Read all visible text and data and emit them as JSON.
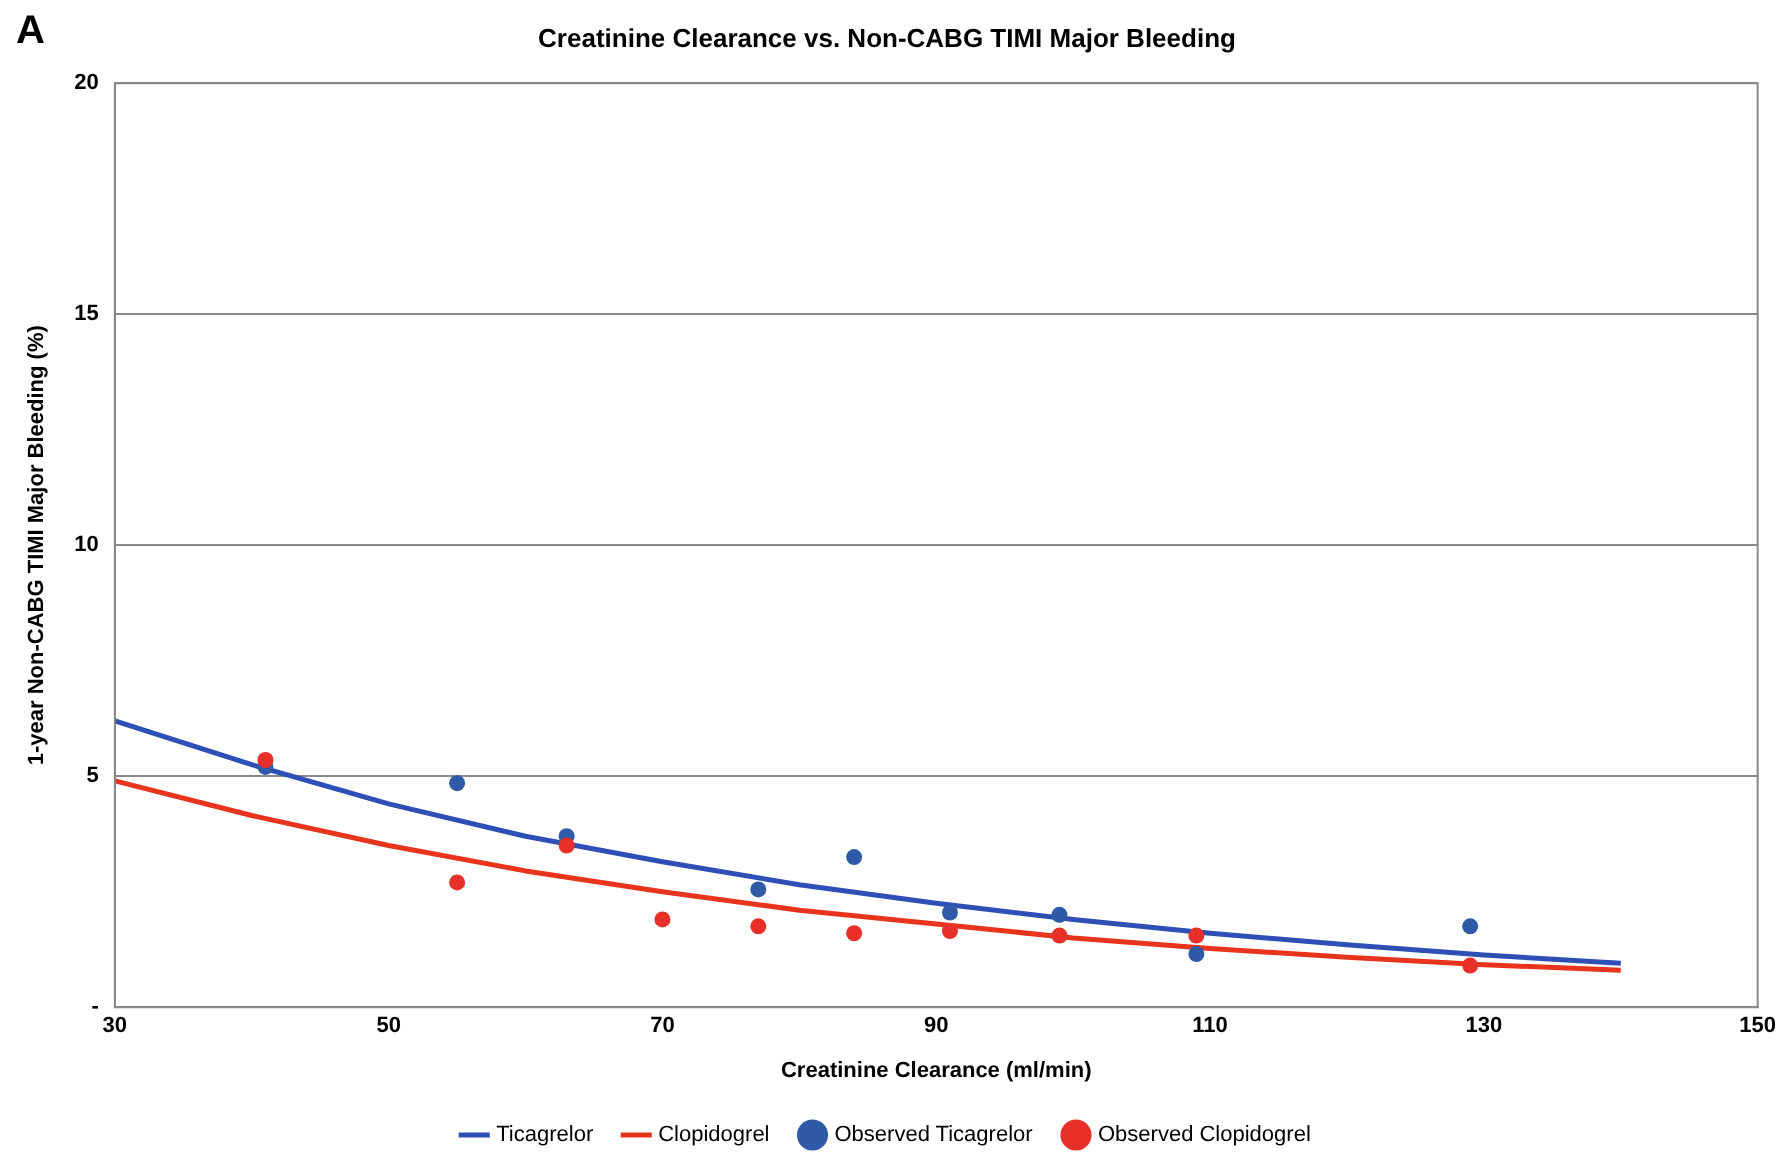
{
  "chart_data": {
    "type": "scatter",
    "title": "Creatinine Clearance vs. Non-CABG TIMI Major Bleeding",
    "xlabel": "Creatinine Clearance (ml/min)",
    "ylabel": "1-year Non-CABG TIMI Major Bleeding (%)",
    "annotations": [
      "A"
    ],
    "xlim": [
      30,
      150
    ],
    "xticks": [
      30,
      50,
      70,
      90,
      110,
      130,
      150
    ],
    "ylim": [
      0,
      20
    ],
    "yticks": [
      {
        "value": 0,
        "label": "-"
      },
      5,
      10,
      15,
      20
    ],
    "grid": "y",
    "legend": "bottom",
    "series": [
      {
        "name": "Ticagrelor",
        "type": "line",
        "marker": "none",
        "color": "#2e4fb5",
        "x": [
          30,
          40,
          50,
          60,
          70,
          80,
          90,
          100,
          110,
          120,
          130,
          140
        ],
        "values": [
          6.2,
          5.25,
          4.4,
          3.7,
          3.15,
          2.65,
          2.25,
          1.9,
          1.6,
          1.35,
          1.13,
          0.95
        ]
      },
      {
        "name": "Clopidogrel",
        "type": "line",
        "marker": "none",
        "color": "#e8341c",
        "x": [
          30,
          40,
          50,
          60,
          70,
          80,
          90,
          100,
          110,
          120,
          130,
          140
        ],
        "values": [
          4.9,
          4.15,
          3.5,
          2.95,
          2.5,
          2.1,
          1.8,
          1.5,
          1.27,
          1.08,
          0.92,
          0.8
        ]
      },
      {
        "name": "Observed Ticagrelor",
        "marker": "circle",
        "color": "#2e5aa8",
        "x": [
          41,
          55,
          63,
          77,
          84,
          91,
          99,
          109,
          129
        ],
        "values": [
          5.2,
          4.85,
          3.7,
          2.55,
          3.25,
          2.05,
          2.0,
          1.15,
          1.75
        ]
      },
      {
        "name": "Observed Clopidogrel",
        "marker": "circle",
        "color": "#e8302a",
        "x": [
          41,
          55,
          63,
          70,
          77,
          84,
          91,
          99,
          109,
          129
        ],
        "values": [
          5.35,
          2.7,
          3.5,
          1.9,
          1.75,
          1.6,
          1.65,
          1.55,
          1.55,
          0.9
        ]
      }
    ]
  }
}
